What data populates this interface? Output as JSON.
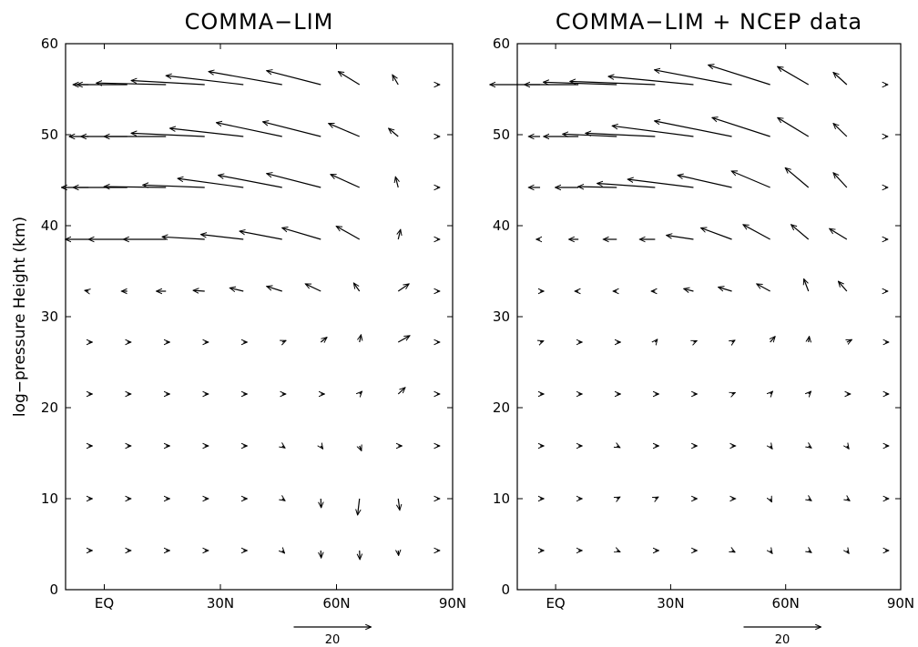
{
  "figure": {
    "ylabel": "log−pressure Height (km)",
    "reference_vector": {
      "label": "20",
      "magnitude": 20
    }
  },
  "chart_data": [
    {
      "type": "quiver",
      "title": "COMMA−LIM",
      "xlabel": "",
      "ylabel": "log−pressure Height (km)",
      "xlim": [
        -10,
        90
      ],
      "ylim": [
        0,
        60
      ],
      "xticks": [
        0,
        30,
        60,
        90
      ],
      "xtick_labels": [
        "EQ",
        "30N",
        "60N",
        "90N"
      ],
      "yticks": [
        0,
        10,
        20,
        30,
        40,
        50,
        60
      ],
      "ytick_labels": [
        "0",
        "10",
        "20",
        "30",
        "40",
        "50",
        "60"
      ],
      "grid": false,
      "x": [
        -5,
        5,
        15,
        25,
        35,
        45,
        55,
        65,
        75,
        85
      ],
      "y": [
        4.3,
        10,
        15.8,
        21.5,
        27.2,
        32.8,
        38.5,
        44.2,
        49.8,
        55.5
      ],
      "u": [
        [
          0.5,
          0.5,
          0.5,
          0.4,
          0.3,
          0.2,
          0.1,
          0.1,
          0.1,
          0.0
        ],
        [
          0.5,
          0.5,
          0.5,
          0.5,
          0.4,
          0.3,
          0.1,
          -0.5,
          0.4,
          0.0
        ],
        [
          0.6,
          0.6,
          0.7,
          0.6,
          0.4,
          0.3,
          0.3,
          0.5,
          0.4,
          0.0
        ],
        [
          0.6,
          0.6,
          0.6,
          0.6,
          0.6,
          0.6,
          0.5,
          0.6,
          1.8,
          0.0
        ],
        [
          0.5,
          0.5,
          0.5,
          0.5,
          0.5,
          1.0,
          1.6,
          0.4,
          3.0,
          0.0
        ],
        [
          -1.0,
          -1.5,
          -2.5,
          -3.0,
          -3.5,
          -4.0,
          -4.0,
          -1.5,
          2.8,
          0.0
        ],
        [
          -6.0,
          -10.0,
          -11.0,
          -11.0,
          -11.0,
          -11.0,
          -10.0,
          -6.0,
          0.6,
          0.0
        ],
        [
          -7.0,
          -14.0,
          -16.0,
          -16.0,
          -17.0,
          -16.5,
          -14.0,
          -7.5,
          -0.7,
          0.0
        ],
        [
          -5.0,
          -12.0,
          -16.0,
          -19.0,
          -19.0,
          -17.0,
          -15.0,
          -8.0,
          -2.5,
          0.0
        ],
        [
          -4.0,
          -13.0,
          -18.0,
          -19.0,
          -20.0,
          -19.0,
          -14.0,
          -5.5,
          -1.5,
          0.0
        ]
      ],
      "v": [
        [
          0.0,
          0.0,
          0.0,
          0.0,
          0.0,
          -0.1,
          -0.9,
          -1.1,
          -0.6,
          0.0
        ],
        [
          0.0,
          0.0,
          0.0,
          0.0,
          0.0,
          -0.1,
          -1.1,
          -2.0,
          -1.4,
          0.0
        ],
        [
          0.0,
          0.0,
          0.0,
          0.0,
          0.0,
          -0.1,
          -0.2,
          -0.6,
          0.0,
          0.0
        ],
        [
          0.0,
          0.0,
          0.0,
          0.0,
          0.0,
          0.0,
          0.0,
          0.3,
          0.8,
          0.0
        ],
        [
          0.0,
          0.0,
          0.0,
          0.0,
          0.0,
          0.2,
          0.6,
          0.9,
          0.8,
          0.0
        ],
        [
          0.1,
          0.0,
          0.0,
          0.1,
          0.4,
          0.6,
          0.9,
          1.0,
          0.9,
          0.0
        ],
        [
          0.0,
          0.0,
          0.0,
          0.3,
          0.6,
          1.0,
          1.4,
          1.6,
          1.2,
          0.0
        ],
        [
          0.0,
          0.0,
          0.1,
          0.3,
          1.1,
          1.5,
          1.7,
          1.6,
          1.3,
          0.0
        ],
        [
          0.0,
          0.0,
          0.0,
          0.4,
          1.0,
          1.7,
          1.8,
          1.6,
          1.0,
          0.0
        ],
        [
          0.0,
          0.0,
          0.2,
          0.5,
          1.1,
          1.6,
          1.7,
          1.6,
          1.2,
          0.0
        ]
      ]
    },
    {
      "type": "quiver",
      "title": "COMMA−LIM + NCEP data",
      "xlabel": "",
      "ylabel": "",
      "xlim": [
        -10,
        90
      ],
      "ylim": [
        0,
        60
      ],
      "xticks": [
        0,
        30,
        60,
        90
      ],
      "xtick_labels": [
        "EQ",
        "30N",
        "60N",
        "90N"
      ],
      "yticks": [
        0,
        10,
        20,
        30,
        40,
        50,
        60
      ],
      "ytick_labels": [
        "0",
        "10",
        "20",
        "30",
        "40",
        "50",
        "60"
      ],
      "grid": false,
      "x": [
        -5,
        5,
        15,
        25,
        35,
        45,
        55,
        65,
        75,
        85
      ],
      "y": [
        4.3,
        10,
        15.8,
        21.5,
        27.2,
        32.8,
        38.5,
        44.2,
        49.8,
        55.5
      ],
      "u": [
        [
          0.5,
          0.5,
          0.5,
          0.5,
          0.4,
          0.4,
          0.3,
          0.3,
          0.3,
          0.2
        ],
        [
          0.3,
          0.4,
          0.4,
          0.4,
          0.4,
          0.4,
          0.3,
          0.3,
          0.3,
          0.2
        ],
        [
          0.5,
          0.5,
          0.4,
          0.4,
          0.4,
          0.4,
          0.3,
          0.3,
          0.3,
          0.2
        ],
        [
          0.5,
          0.5,
          0.5,
          0.5,
          0.5,
          0.5,
          0.4,
          0.4,
          0.5,
          0.3
        ],
        [
          0.6,
          0.6,
          0.5,
          0.5,
          0.5,
          0.7,
          1.3,
          0.2,
          1.3,
          0.2
        ],
        [
          0.1,
          -0.5,
          -0.7,
          -1.0,
          -2.5,
          -3.5,
          -3.5,
          -1.2,
          -2.2,
          0.0
        ],
        [
          -1.0,
          -2.5,
          -3.5,
          -4.0,
          -7.0,
          -8.0,
          -7.0,
          -4.5,
          -4.5,
          0.0
        ],
        [
          -3.0,
          -6.0,
          -10.0,
          -15.0,
          -17.0,
          -14.0,
          -10.0,
          -6.0,
          -3.5,
          0.0
        ],
        [
          -3.0,
          -9.0,
          -14.0,
          -18.0,
          -21.0,
          -20.0,
          -15.0,
          -8.0,
          -3.5,
          0.0
        ],
        [
          -13.0,
          -14.0,
          -19.0,
          -22.0,
          -22.0,
          -20.0,
          -16.0,
          -8.0,
          -3.5,
          0.0
        ]
      ],
      "v": [
        [
          0.0,
          0.0,
          -0.1,
          0.0,
          0.0,
          -0.1,
          -0.2,
          -0.1,
          -0.2,
          0.0
        ],
        [
          0.0,
          0.0,
          0.1,
          0.1,
          0.0,
          0.0,
          -0.3,
          -0.1,
          -0.1,
          0.0
        ],
        [
          0.0,
          0.0,
          -0.1,
          0.0,
          0.0,
          0.0,
          -0.2,
          -0.1,
          -0.2,
          0.0
        ],
        [
          0.0,
          0.0,
          0.0,
          0.0,
          0.0,
          0.1,
          0.2,
          0.2,
          0.0,
          0.0
        ],
        [
          0.1,
          0.0,
          0.0,
          0.3,
          0.1,
          0.2,
          0.7,
          0.7,
          0.3,
          0.0
        ],
        [
          0.0,
          0.0,
          0.0,
          0.0,
          0.3,
          0.5,
          0.9,
          1.5,
          1.2,
          0.0
        ],
        [
          0.0,
          0.0,
          0.0,
          0.0,
          0.5,
          1.4,
          1.8,
          1.8,
          1.3,
          0.0
        ],
        [
          0.0,
          0.0,
          0.1,
          0.5,
          1.0,
          1.5,
          2.0,
          2.4,
          1.8,
          0.0
        ],
        [
          0.0,
          0.0,
          0.3,
          0.4,
          1.3,
          1.9,
          2.3,
          2.3,
          1.6,
          0.0
        ],
        [
          0.0,
          0.0,
          0.3,
          0.4,
          1.0,
          1.8,
          2.4,
          2.2,
          1.5,
          0.0
        ]
      ]
    }
  ]
}
